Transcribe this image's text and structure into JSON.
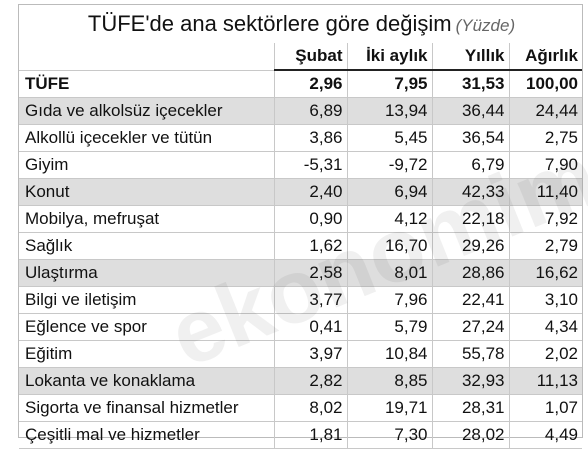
{
  "title": "TÜFE'de ana sektörlere göre değişim",
  "subtitle": "(Yüzde)",
  "table": {
    "headers": [
      "Şubat",
      "İki aylık",
      "Yıllık",
      "Ağırlık"
    ],
    "rows": [
      [
        "TÜFE",
        "2,96",
        "7,95",
        "31,53",
        "100,00"
      ],
      [
        "Gıda ve alkolsüz içecekler",
        "6,89",
        "13,94",
        "36,44",
        "24,44"
      ],
      [
        "Alkollü içecekler ve tütün",
        "3,86",
        "5,45",
        "36,54",
        "2,75"
      ],
      [
        "Giyim",
        "-5,31",
        "-9,72",
        "6,79",
        "7,90"
      ],
      [
        "Konut",
        "2,40",
        "6,94",
        "42,33",
        "11,40"
      ],
      [
        "Mobilya, mefruşat",
        "0,90",
        "4,12",
        "22,18",
        "7,92"
      ],
      [
        "Sağlık",
        "1,62",
        "16,70",
        "29,26",
        "2,79"
      ],
      [
        "Ulaştırma",
        "2,58",
        "8,01",
        "28,86",
        "16,62"
      ],
      [
        "Bilgi ve iletişim",
        "3,77",
        "7,96",
        "22,41",
        "3,10"
      ],
      [
        "Eğlence ve spor",
        "0,41",
        "5,79",
        "27,24",
        "4,34"
      ],
      [
        "Eğitim",
        "3,97",
        "10,84",
        "55,78",
        "2,02"
      ],
      [
        "Lokanta ve konaklama",
        "2,82",
        "8,85",
        "32,93",
        "11,13"
      ],
      [
        "Sigorta ve finansal hizmetler",
        "8,02",
        "19,71",
        "28,31",
        "1,07"
      ],
      [
        "Çeşitli mal ve hizmetler",
        "1,81",
        "7,30",
        "28,02",
        "4,49"
      ]
    ]
  },
  "watermark": "ekonomim"
}
